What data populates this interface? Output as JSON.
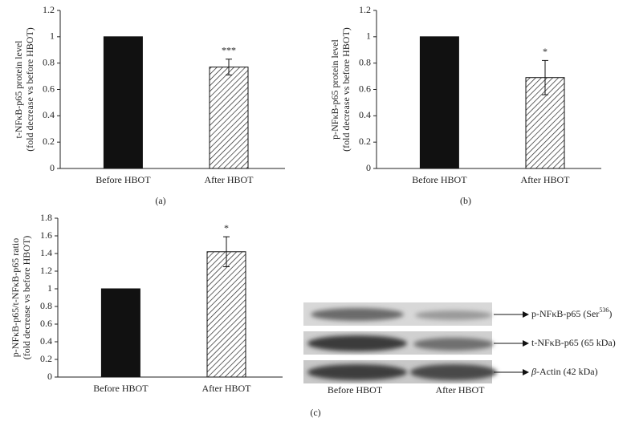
{
  "chart_data": [
    {
      "type": "bar",
      "panel_label": "(a)",
      "ylabel": [
        "t-NFκB-p65 protein level",
        "(fold decrease vs before HBOT)"
      ],
      "categories": [
        "Before HBOT",
        "After HBOT"
      ],
      "values": [
        1,
        0.77
      ],
      "errors": [
        null,
        0.06
      ],
      "significance": [
        null,
        "***"
      ],
      "colors": [
        "#111111",
        "#111111"
      ],
      "patterns": [
        "solid",
        "diagonal-hatch"
      ],
      "ylim": [
        0,
        1.2
      ],
      "yticks": [
        0,
        0.2,
        0.4,
        0.6,
        0.8,
        1,
        1.2
      ]
    },
    {
      "type": "bar",
      "panel_label": "(b)",
      "ylabel": [
        "p-NFκB-p65 protein level",
        "(fold decrease vs before HBOT)"
      ],
      "categories": [
        "Before HBOT",
        "After HBOT"
      ],
      "values": [
        1,
        0.69
      ],
      "errors": [
        null,
        0.13
      ],
      "significance": [
        null,
        "*"
      ],
      "colors": [
        "#111111",
        "#111111"
      ],
      "patterns": [
        "solid",
        "diagonal-hatch"
      ],
      "ylim": [
        0,
        1.2
      ],
      "yticks": [
        0,
        0.2,
        0.4,
        0.6,
        0.8,
        1,
        1.2
      ]
    },
    {
      "type": "bar",
      "panel_label": "(c)",
      "ylabel": [
        "p-NFκB-p65/t-NFκB-p65 ratio",
        "(fold decrease vs before HBOT)"
      ],
      "categories": [
        "Before HBOT",
        "After HBOT"
      ],
      "values": [
        1,
        1.42
      ],
      "errors": [
        null,
        0.17
      ],
      "significance": [
        null,
        "*"
      ],
      "colors": [
        "#111111",
        "#111111"
      ],
      "patterns": [
        "solid",
        "diagonal-hatch"
      ],
      "ylim": [
        0,
        1.8
      ],
      "yticks": [
        0,
        0.2,
        0.4,
        0.6,
        0.8,
        1,
        1.2,
        1.4,
        1.6,
        1.8
      ]
    }
  ],
  "blot": {
    "lanes": [
      "Before HBOT",
      "After HBOT"
    ],
    "bands": [
      {
        "label": "p-NFκB-p65 (Ser",
        "superscript": "536",
        "suffix": ")"
      },
      {
        "label": "t-NFκB-p65 (65 kDa)"
      },
      {
        "label": "-Actin (42 kDa)",
        "prefix": "β"
      }
    ]
  }
}
